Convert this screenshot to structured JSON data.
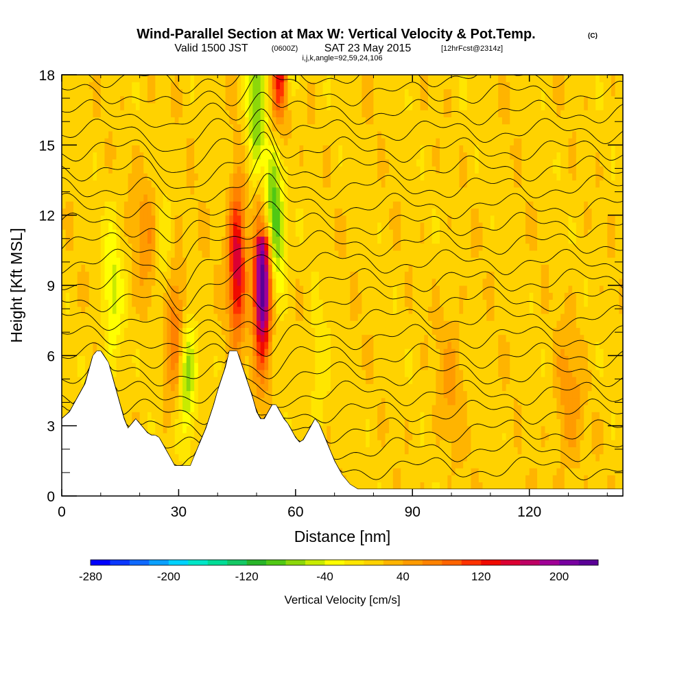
{
  "title": {
    "main": "Wind-Parallel Section at Max W: Vertical Velocity & Pot.Temp.",
    "copyright": "(C)",
    "valid_prefix": "Valid 1500 JST",
    "valid_utc": "(0600Z)",
    "valid_date": "SAT 23 May 2015",
    "forecast": "[12hrFcst@2314z]",
    "indices": "i,j,k,angle=92,59,24,106"
  },
  "chart_data": {
    "type": "heatmap",
    "xlabel": "Distance [nm]",
    "ylabel": "Height [Kft MSL]",
    "xlim": [
      0,
      144
    ],
    "ylim": [
      0,
      18
    ],
    "xticks": [
      0,
      30,
      60,
      90,
      120
    ],
    "xtick_labels": [
      "0",
      "30",
      "60",
      "90",
      "120"
    ],
    "yticks": [
      0,
      3,
      6,
      9,
      12,
      15,
      18
    ],
    "ytick_labels": [
      "0",
      "3",
      "6",
      "9",
      "12",
      "15",
      "18"
    ],
    "colorbar": {
      "title": "Vertical Velocity [cm/s]",
      "min": -280,
      "max": 240,
      "step": 20,
      "tick_values": [
        -280,
        -200,
        -120,
        -40,
        40,
        120,
        200
      ],
      "tick_labels": [
        "-280",
        "-200",
        "-120",
        "-40",
        "40",
        "120",
        "200"
      ],
      "colors": [
        "#0000ff",
        "#0a37ff",
        "#0f69ff",
        "#0aa0ff",
        "#00d2ff",
        "#00e6c8",
        "#00dc96",
        "#14c864",
        "#28b428",
        "#50c814",
        "#8cd70a",
        "#c8eb00",
        "#ffff00",
        "#ffe600",
        "#ffd200",
        "#ffb400",
        "#ff9b00",
        "#ff8200",
        "#ff6400",
        "#ff3200",
        "#f00a00",
        "#dc0032",
        "#be0064",
        "#a00096",
        "#7800a0",
        "#5a0096"
      ]
    },
    "terrain_profile": {
      "x": [
        0,
        2,
        3,
        4,
        5,
        6,
        7,
        8,
        9,
        10,
        12,
        13,
        14,
        15,
        16,
        17,
        18,
        19,
        20,
        21,
        22,
        23,
        24,
        25,
        26,
        27,
        28,
        29,
        30,
        33,
        34,
        35,
        36,
        37,
        38,
        39,
        40,
        41,
        42,
        43,
        44,
        45,
        46,
        47,
        48,
        49,
        50,
        51,
        52,
        53,
        54,
        55,
        56,
        57,
        58,
        59,
        60,
        61,
        62,
        63,
        64,
        65,
        66,
        67,
        68,
        69,
        70,
        71,
        72,
        73,
        74,
        76,
        78,
        144
      ],
      "y": [
        3.3,
        3.6,
        3.9,
        4.2,
        4.5,
        4.8,
        5.4,
        6.0,
        6.2,
        6.2,
        5.7,
        5.1,
        4.5,
        3.9,
        3.3,
        2.9,
        3.1,
        3.3,
        3.1,
        2.9,
        2.7,
        2.6,
        2.6,
        2.5,
        2.2,
        1.9,
        1.6,
        1.3,
        1.3,
        1.3,
        1.7,
        2.1,
        2.5,
        2.9,
        3.4,
        3.9,
        4.5,
        5.0,
        5.5,
        6.2,
        6.2,
        6.2,
        5.7,
        5.2,
        4.7,
        4.2,
        3.6,
        3.3,
        3.3,
        3.6,
        3.9,
        3.9,
        3.6,
        3.3,
        3.1,
        2.8,
        2.5,
        2.3,
        2.4,
        2.7,
        3.0,
        3.3,
        3.1,
        2.7,
        2.3,
        1.9,
        1.5,
        1.2,
        0.9,
        0.7,
        0.5,
        0.3,
        0.3,
        0.3
      ]
    },
    "updrafts": [
      {
        "x": 30,
        "y": 7.0,
        "peak": 90
      },
      {
        "x": 45,
        "y": 10.0,
        "peak": 150
      },
      {
        "x": 51.5,
        "y": 9.0,
        "peak": 240
      },
      {
        "x": 56,
        "y": 17.5,
        "peak": 140
      },
      {
        "x": 22,
        "y": 11.0,
        "peak": 40
      },
      {
        "x": 130,
        "y": 4.0,
        "peak": 40
      },
      {
        "x": 100,
        "y": 5.0,
        "peak": 30
      }
    ],
    "downdrafts": [
      {
        "x": 32,
        "y": 5.5,
        "peak": -120
      },
      {
        "x": 55,
        "y": 11.5,
        "peak": -110
      },
      {
        "x": 50,
        "y": 16.5,
        "peak": -100
      },
      {
        "x": 13,
        "y": 8.5,
        "peak": -60
      },
      {
        "x": 26,
        "y": 9.5,
        "peak": -40
      },
      {
        "x": 66,
        "y": 5.0,
        "peak": -30
      }
    ]
  }
}
